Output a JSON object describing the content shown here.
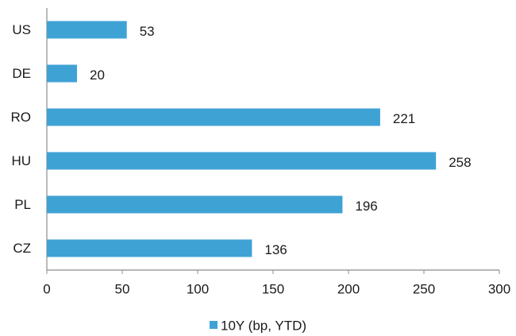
{
  "chart_data": {
    "type": "bar",
    "orientation": "horizontal",
    "categories": [
      "US",
      "DE",
      "RO",
      "HU",
      "PL",
      "CZ"
    ],
    "series": [
      {
        "name": "10Y (bp, YTD)",
        "values": [
          53,
          20,
          221,
          258,
          196,
          136
        ]
      }
    ],
    "xlim": [
      0,
      300
    ],
    "xticks": [
      0,
      50,
      100,
      150,
      200,
      250,
      300
    ],
    "grid": false,
    "legend_position": "bottom",
    "data_labels": true,
    "colors": {
      "bar": "#3fa2d5",
      "axis": "#8c8c8c",
      "text": "#1a1a1a"
    }
  }
}
